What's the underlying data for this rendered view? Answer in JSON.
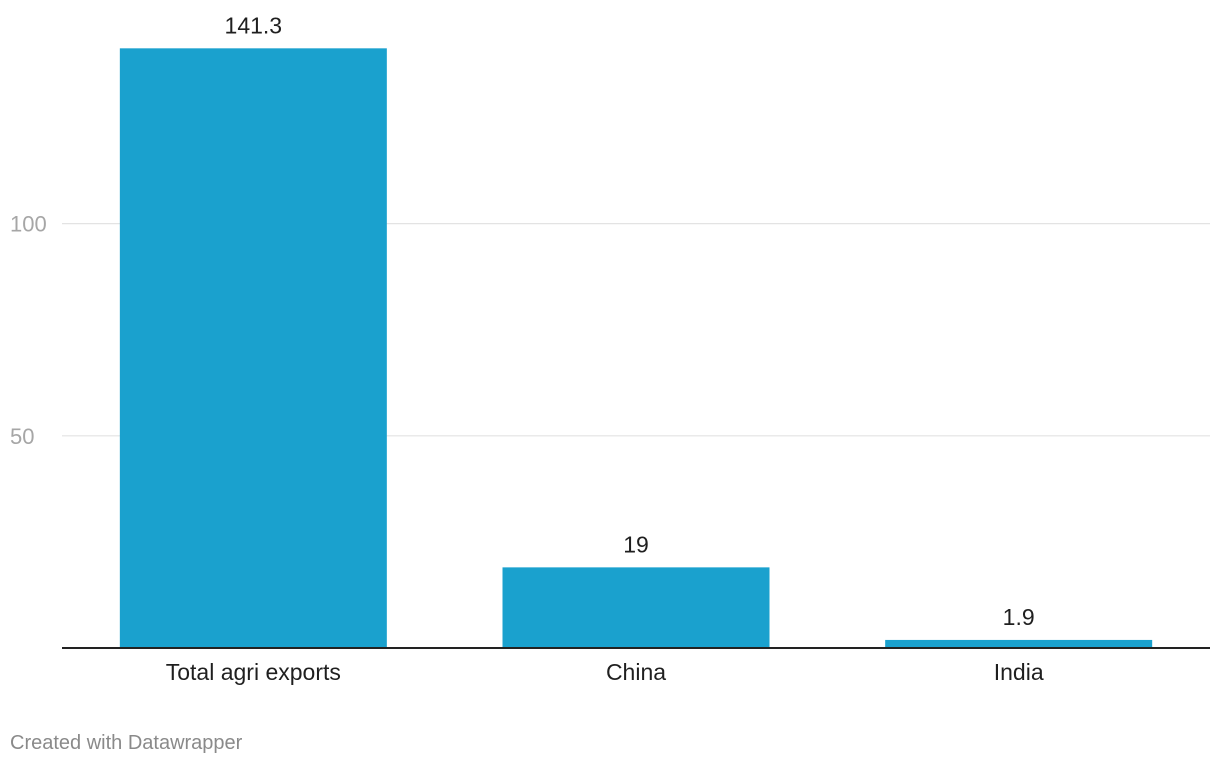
{
  "chart_data": {
    "type": "bar",
    "categories": [
      "Total agri exports",
      "China",
      "India"
    ],
    "values": [
      141.3,
      19,
      1.9
    ],
    "value_labels": [
      "141.3",
      "19",
      "1.9"
    ],
    "title": "",
    "xlabel": "",
    "ylabel": "",
    "ylim": [
      0,
      141.3
    ],
    "yticks": [
      50,
      100
    ],
    "ytick_labels": [
      "50",
      "100"
    ],
    "grid": true,
    "bar_color": "#1aa1ce",
    "grid_color": "#e3e3e3",
    "baseline_color": "#222222"
  },
  "footer": {
    "credit": "Created with Datawrapper"
  }
}
